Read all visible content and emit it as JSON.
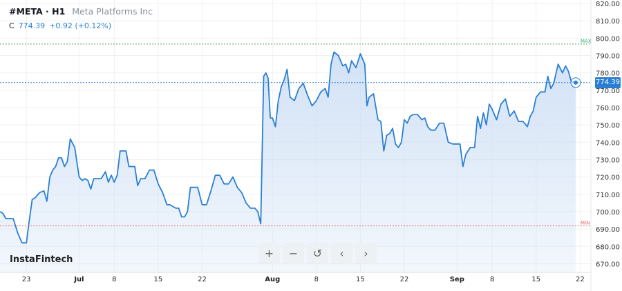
{
  "header": {
    "symbol": "#META · H1",
    "name": "Meta Platforms Inc",
    "close_label": "C",
    "close_value": "774.39",
    "change": "+0.92 (+0.12%)"
  },
  "logo": "InstaFintech",
  "toolbar": [
    {
      "name": "zoom-in-button",
      "icon": "plus-icon",
      "glyph": "+"
    },
    {
      "name": "zoom-out-button",
      "icon": "minus-icon",
      "glyph": "−"
    },
    {
      "name": "reset-button",
      "icon": "reset-icon",
      "glyph": "↺"
    },
    {
      "name": "scroll-left-button",
      "icon": "chevron-left-icon",
      "glyph": "‹"
    },
    {
      "name": "scroll-right-button",
      "icon": "chevron-right-icon",
      "glyph": "›"
    }
  ],
  "colors": {
    "line": "#2a7fd4",
    "fill": "#cfe0f5",
    "max": "#3fae6a",
    "min": "#e06666",
    "grid": "#eef0f3",
    "axis_text": "#333333"
  },
  "chart_data": {
    "type": "area",
    "ylim": [
      665,
      822
    ],
    "yticks": [
      670,
      680,
      690,
      700,
      710,
      720,
      730,
      740,
      750,
      760,
      770,
      780,
      790,
      800,
      810,
      820
    ],
    "grid": true,
    "last_price": 774.39,
    "max_line": {
      "label": "MAX",
      "value": 796.6
    },
    "min_line": {
      "label": "MIN",
      "value": 691.8
    },
    "xticks": [
      {
        "label": "23",
        "date": "Jun 23",
        "month": false
      },
      {
        "label": "Jul",
        "date": "Jul 1",
        "month": true
      },
      {
        "label": "8",
        "date": "Jul 8",
        "month": false
      },
      {
        "label": "15",
        "date": "Jul 15",
        "month": false
      },
      {
        "label": "22",
        "date": "Jul 22",
        "month": false
      },
      {
        "label": "Aug",
        "date": "Aug 1",
        "month": true
      },
      {
        "label": "8",
        "date": "Aug 8",
        "month": false
      },
      {
        "label": "15",
        "date": "Aug 15",
        "month": false
      },
      {
        "label": "22",
        "date": "Aug 22",
        "month": false
      },
      {
        "label": "Sep",
        "date": "Sep 2",
        "month": true
      },
      {
        "label": "8",
        "date": "Sep 8",
        "month": false
      },
      {
        "label": "15",
        "date": "Sep 15",
        "month": false
      },
      {
        "label": "22",
        "date": "Sep 22",
        "month": false
      }
    ],
    "days": [
      {
        "date": "Jun 17",
        "v": [
          700,
          699,
          696
        ]
      },
      {
        "date": "Jun 18",
        "v": [
          696,
          696
        ]
      },
      {
        "date": "Jun 20",
        "v": [
          688,
          682
        ]
      },
      {
        "date": "Jun 23",
        "v": [
          682,
          695,
          707
        ]
      },
      {
        "date": "Jun 24",
        "v": [
          708,
          711
        ]
      },
      {
        "date": "Jun 25",
        "v": [
          712,
          706,
          720
        ]
      },
      {
        "date": "Jun 26",
        "v": [
          724,
          726,
          731
        ]
      },
      {
        "date": "Jun 27",
        "v": [
          731,
          726,
          729
        ]
      },
      {
        "date": "Jun 30",
        "v": [
          742,
          737
        ]
      },
      {
        "date": "Jul 1",
        "v": [
          720,
          718,
          719
        ]
      },
      {
        "date": "Jul 2",
        "v": [
          718,
          713,
          719
        ]
      },
      {
        "date": "Jul 3",
        "v": [
          719,
          719
        ]
      },
      {
        "date": "Jul 7",
        "v": [
          723,
          717,
          721
        ]
      },
      {
        "date": "Jul 8",
        "v": [
          717,
          721,
          735
        ]
      },
      {
        "date": "Jul 9",
        "v": [
          735,
          735,
          726
        ]
      },
      {
        "date": "Jul 10",
        "v": [
          726,
          726,
          715
        ]
      },
      {
        "date": "Jul 11",
        "v": [
          719,
          719
        ]
      },
      {
        "date": "Jul 14",
        "v": [
          724,
          724
        ]
      },
      {
        "date": "Jul 15",
        "v": [
          716,
          711
        ]
      },
      {
        "date": "Jul 16",
        "v": [
          704,
          704,
          703
        ]
      },
      {
        "date": "Jul 17",
        "v": [
          702,
          702,
          697
        ]
      },
      {
        "date": "Jul 18",
        "v": [
          697,
          700,
          714
        ]
      },
      {
        "date": "Jul 21",
        "v": [
          714,
          714
        ]
      },
      {
        "date": "Jul 22",
        "v": [
          704,
          704
        ]
      },
      {
        "date": "Jul 23",
        "v": [
          712,
          721
        ]
      },
      {
        "date": "Jul 24",
        "v": [
          721,
          716
        ]
      },
      {
        "date": "Jul 25",
        "v": [
          716,
          720
        ]
      },
      {
        "date": "Jul 28",
        "v": [
          714,
          711
        ]
      },
      {
        "date": "Jul 29",
        "v": [
          705,
          702
        ]
      },
      {
        "date": "Jul 30",
        "v": [
          702,
          700,
          693
        ]
      },
      {
        "date": "Jul 31",
        "v": [
          778,
          780,
          777,
          754
        ]
      },
      {
        "date": "Aug 1",
        "v": [
          754,
          749,
          764
        ]
      },
      {
        "date": "Aug 4",
        "v": [
          772,
          776,
          782
        ]
      },
      {
        "date": "Aug 5",
        "v": [
          766,
          764
        ]
      },
      {
        "date": "Aug 6",
        "v": [
          771,
          774
        ]
      },
      {
        "date": "Aug 7",
        "v": [
          767,
          761
        ]
      },
      {
        "date": "Aug 8",
        "v": [
          764,
          769
        ]
      },
      {
        "date": "Aug 11",
        "v": [
          771,
          766,
          785
        ]
      },
      {
        "date": "Aug 12",
        "v": [
          792,
          790
        ]
      },
      {
        "date": "Aug 13",
        "v": [
          784,
          785,
          780
        ]
      },
      {
        "date": "Aug 14",
        "v": [
          787,
          783
        ]
      },
      {
        "date": "Aug 15",
        "v": [
          791,
          788,
          785,
          761
        ]
      },
      {
        "date": "Aug 18",
        "v": [
          766,
          768
        ]
      },
      {
        "date": "Aug 19",
        "v": [
          753,
          752,
          735
        ]
      },
      {
        "date": "Aug 20",
        "v": [
          744,
          745,
          748
        ]
      },
      {
        "date": "Aug 21",
        "v": [
          739,
          737,
          740
        ]
      },
      {
        "date": "Aug 22",
        "v": [
          753,
          751,
          755
        ]
      },
      {
        "date": "Aug 25",
        "v": [
          756,
          756
        ]
      },
      {
        "date": "Aug 26",
        "v": [
          753,
          754,
          749
        ]
      },
      {
        "date": "Aug 27",
        "v": [
          747,
          747
        ]
      },
      {
        "date": "Aug 28",
        "v": [
          751,
          751
        ]
      },
      {
        "date": "Aug 29",
        "v": [
          740,
          739
        ]
      },
      {
        "date": "Sep 2",
        "v": [
          739,
          739,
          726
        ]
      },
      {
        "date": "Sep 3",
        "v": [
          733,
          737
        ]
      },
      {
        "date": "Sep 4",
        "v": [
          737,
          755,
          748
        ]
      },
      {
        "date": "Sep 5",
        "v": [
          757,
          750,
          762
        ]
      },
      {
        "date": "Sep 8",
        "v": [
          759,
          753
        ]
      },
      {
        "date": "Sep 9",
        "v": [
          762,
          765
        ]
      },
      {
        "date": "Sep 10",
        "v": [
          755,
          758
        ]
      },
      {
        "date": "Sep 11",
        "v": [
          752,
          752
        ]
      },
      {
        "date": "Sep 12",
        "v": [
          749,
          755,
          758
        ]
      },
      {
        "date": "Sep 15",
        "v": [
          766,
          769
        ]
      },
      {
        "date": "Sep 16",
        "v": [
          769,
          778,
          771
        ]
      },
      {
        "date": "Sep 17",
        "v": [
          774,
          785
        ]
      },
      {
        "date": "Sep 18",
        "v": [
          780,
          784,
          781
        ]
      },
      {
        "date": "Sep 19",
        "v": [
          775,
          774.39
        ]
      }
    ]
  }
}
